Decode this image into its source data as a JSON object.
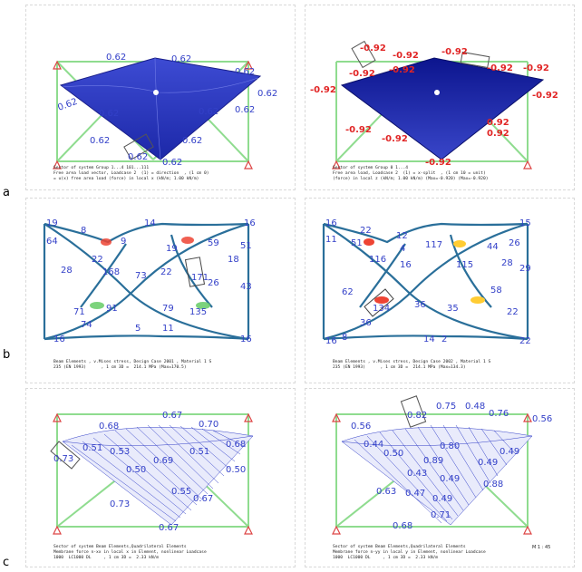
{
  "row_labels": {
    "a": "a",
    "b": "b",
    "c": "c"
  },
  "colors": {
    "shell": "#2f3bc0",
    "shell_dark": "#0b1590",
    "truss": "#7fd47f",
    "support": "#d44",
    "label_blue": "#3340c8",
    "label_red": "#e12525"
  },
  "panel_a_left": {
    "values": [
      "0.62",
      "0.62",
      "0.62",
      "0.62",
      "0.62",
      "0.62",
      "0.62",
      "0.62",
      "0.62",
      "0.62",
      "0.62",
      "0.62"
    ],
    "caption": [
      "Sector of system Group 1...4 101...111",
      "Free area load vector, Loadcase 2  (1) = direction  , (1 cm 0)",
      "= u(x) free area load (force) in local x (kN/m; 1.00 kN/m)"
    ]
  },
  "panel_a_right": {
    "values": [
      "-0.92",
      "-0.92",
      "-0.92",
      "-0.92",
      "-0.92",
      "-0.92",
      "-0.92",
      "-0.92",
      "-0.92",
      "-0.92",
      "-0.92",
      "0.92",
      "0.92",
      "-0.92"
    ],
    "caption": [
      "Sector of system Group 0 1...4",
      "Free area load, Loadcase 2  (1) = x-split  , (1 cm 10 = unit)",
      "(force) in local z (kN/m; 1.00 kN/m) (Max=-0.920) (Max=-0.920)"
    ]
  },
  "panel_b_left": {
    "values": [
      "19",
      "8",
      "14",
      "16",
      "64",
      "9",
      "59",
      "51",
      "28",
      "22",
      "168",
      "73",
      "19",
      "171",
      "18",
      "22",
      "26",
      "43",
      "71",
      "91",
      "74",
      "79",
      "135",
      "11",
      "5",
      "16",
      "16"
    ],
    "caption": [
      "Beam Elements , v.Mises stress, Design Case 2001 , Material 1 S",
      "235 (EN 1993)      , 1 cm 3D =  214.1 MPa (Max=170.5)"
    ]
  },
  "panel_b_right": {
    "values": [
      "16",
      "15",
      "11",
      "22",
      "12",
      "26",
      "51",
      "116",
      "4",
      "117",
      "44",
      "28",
      "29",
      "16",
      "115",
      "62",
      "134",
      "58",
      "36",
      "35",
      "22",
      "36",
      "8",
      "14",
      "2",
      "16",
      "22"
    ],
    "caption": [
      "Beam Elements , v.Mises stress, Design Case 2002 , Material 1 S",
      "235 (EN 1993)      , 1 cm 3D =  214.1 MPa (Max=134.3)"
    ]
  },
  "panel_c_left": {
    "values": [
      "0.67",
      "0.68",
      "0.70",
      "0.51",
      "0.53",
      "0.73",
      "0.51",
      "0.68",
      "0.69",
      "0.50",
      "0.50",
      "0.55",
      "0.67",
      "0.73",
      "0.67"
    ],
    "caption": [
      "Sector of system Beam Elements,Quadrilateral Elements",
      "Membrane force n-xx in local x in Element, nonlinear Loadcase",
      "1000  LC1000 DL     , 1 cm 3D =  2.33 kN/m"
    ]
  },
  "panel_c_right": {
    "values": [
      "0.82",
      "0.75",
      "0.48",
      "0.56",
      "0.76",
      "0.56",
      "0.44",
      "0.50",
      "0.80",
      "0.49",
      "0.89",
      "0.43",
      "0.49",
      "0.49",
      "0.88",
      "0.63",
      "0.47",
      "0.49",
      "0.71",
      "0.68"
    ],
    "caption": [
      "Sector of system Beam Elements,Quadrilateral Elements",
      "Membrane force n-yy in local y in Element, nonlinear Loadcase",
      "1000  LC1000 DL     , 1 cm 3D =  2.33 kN/m"
    ],
    "scale": "M 1 : 45"
  }
}
